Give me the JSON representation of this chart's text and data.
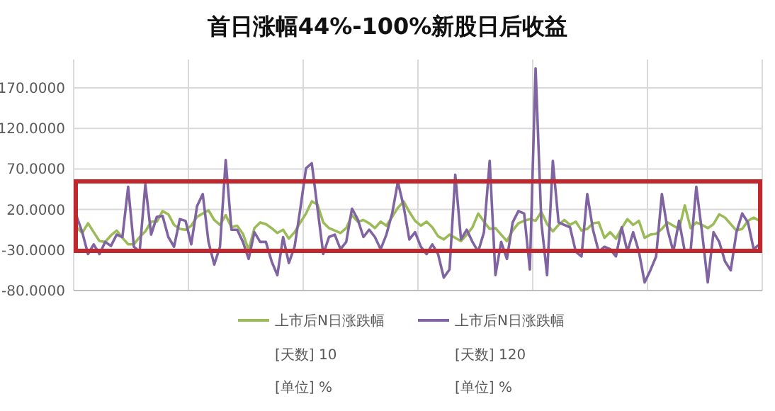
{
  "chart_data": {
    "type": "line",
    "title": "首日涨幅44%-100%新股日后收益",
    "categories": [
      null,
      null,
      null,
      null,
      null,
      null,
      null,
      null,
      null,
      null,
      null,
      null,
      null,
      null,
      null,
      null,
      null,
      null,
      null,
      null,
      null,
      null,
      null,
      null,
      null,
      null,
      null,
      null,
      null,
      null,
      null,
      null,
      null,
      null,
      null,
      null,
      null,
      null,
      null,
      null,
      null,
      null,
      null,
      null,
      null,
      null,
      null,
      null,
      null,
      null,
      null,
      null,
      null,
      null,
      null,
      null,
      null,
      null,
      null,
      null,
      null,
      null,
      null,
      null,
      null,
      null,
      null,
      null,
      null,
      null,
      null,
      null,
      null,
      null,
      null,
      null,
      null,
      null,
      null,
      null,
      null,
      null,
      null,
      null,
      null,
      null,
      null,
      null,
      null,
      null,
      null,
      null,
      null,
      null,
      null,
      null,
      null,
      null,
      null,
      null,
      null,
      null,
      null,
      null,
      null,
      null,
      null,
      null,
      null,
      null,
      null,
      null,
      null,
      null,
      null,
      null,
      null,
      null,
      null,
      null
    ],
    "ylim": [
      -80,
      205
    ],
    "yticks": [
      {
        "value": -80,
        "label": "-80.0000"
      },
      {
        "value": -30,
        "label": "-30.0000"
      },
      {
        "value": 20,
        "label": "20.0000"
      },
      {
        "value": 70,
        "label": "70.0000"
      },
      {
        "value": 120,
        "label": "120.0000"
      },
      {
        "value": 170,
        "label": "170.0000"
      }
    ],
    "grid": true,
    "legend": "bottom",
    "marker": "none",
    "line_style": "solid",
    "annotations": [
      "[天数] 10",
      "[天数] 120",
      "[单位] %",
      "[单位] %"
    ],
    "series": [
      {
        "name": "上市后N日涨跌幅",
        "color": "#9bbb59",
        "values": [
          -2,
          -9,
          3,
          -8,
          -19,
          -20,
          -12,
          -6,
          -15,
          -23,
          -23,
          -14,
          -7,
          5,
          5,
          18,
          14,
          1,
          -4,
          -5,
          0,
          11,
          15,
          19,
          7,
          1,
          13,
          -2,
          0,
          -10,
          -30,
          -3,
          4,
          2,
          -3,
          -9,
          -5,
          -16,
          -8,
          4,
          15,
          30,
          26,
          4,
          -3,
          -6,
          -9,
          -3,
          13,
          5,
          7,
          3,
          -3,
          5,
          0,
          11,
          22,
          30,
          17,
          6,
          0,
          5,
          -2,
          -13,
          -17,
          -11,
          -15,
          -19,
          -11,
          -2,
          15,
          5,
          -4,
          -3,
          -11,
          -19,
          -6,
          3,
          6,
          8,
          6,
          17,
          2,
          -7,
          1,
          7,
          1,
          5,
          -6,
          -4,
          3,
          4,
          -15,
          -8,
          -16,
          -3,
          8,
          1,
          6,
          -15,
          -11,
          -10,
          -4,
          4,
          0,
          -4,
          25,
          -3,
          4,
          1,
          -3,
          2,
          14,
          10,
          2,
          -6,
          -4,
          6,
          10,
          6
        ]
      },
      {
        "name": "上市后N日涨跌幅",
        "color": "#8064a2",
        "values": [
          12,
          -8,
          -35,
          -23,
          -35,
          -20,
          -25,
          -11,
          -14,
          48,
          -26,
          -32,
          51,
          -11,
          11,
          12,
          -14,
          -26,
          8,
          6,
          -23,
          24,
          39,
          -20,
          -48,
          -26,
          81,
          -5,
          -5,
          -20,
          -41,
          -8,
          -20,
          -20,
          -44,
          -61,
          -14,
          -46,
          -26,
          21,
          71,
          77,
          21,
          -35,
          -14,
          -11,
          -29,
          -20,
          21,
          8,
          -14,
          -5,
          -14,
          -29,
          -11,
          15,
          54,
          24,
          -17,
          -8,
          -26,
          -35,
          -23,
          -35,
          -64,
          -54,
          63,
          -17,
          -5,
          -20,
          -32,
          -8,
          80,
          -61,
          -20,
          -41,
          4,
          18,
          15,
          -54,
          194,
          4,
          -61,
          80,
          4,
          1,
          -2,
          -32,
          -38,
          39,
          -5,
          -32,
          -26,
          -29,
          -38,
          -2,
          -32,
          -8,
          -32,
          -70,
          -55,
          -38,
          39,
          -5,
          -32,
          6,
          -32,
          -32,
          48,
          -8,
          -70,
          -8,
          -20,
          -44,
          -55,
          -8,
          15,
          4,
          -29,
          -23
        ]
      }
    ]
  }
}
